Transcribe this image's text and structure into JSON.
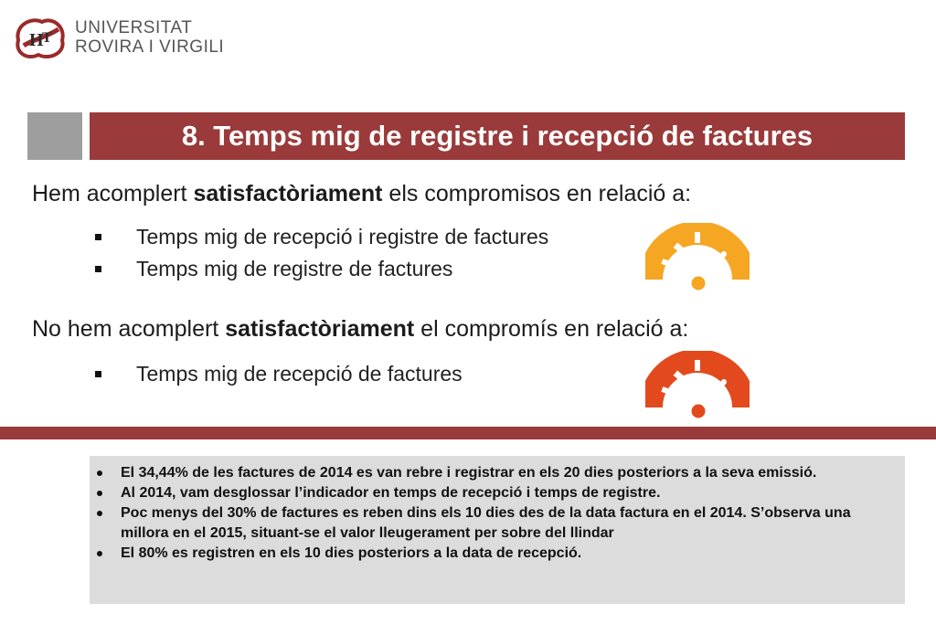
{
  "header": {
    "university_line1": "UNIVERSITAT",
    "university_line2": "ROVIRA I VIRGILI"
  },
  "title": "8. Temps mig de registre i recepció de factures",
  "section_met": {
    "heading_prefix": "Hem acomplert ",
    "heading_bold": "satisfactòriament",
    "heading_suffix": " els compromisos en relació a:",
    "items": [
      "Temps mig de recepció i registre de factures",
      "Temps mig de registre de factures"
    ],
    "gauge_color": "#f5a623",
    "gauge_icon": "speedometer-icon"
  },
  "section_not_met": {
    "heading_prefix": "No hem acomplert ",
    "heading_bold": "satisfactòriament",
    "heading_suffix": " el compromís en relació a:",
    "items": [
      "Temps mig de recepció de factures"
    ],
    "gauge_color": "#e24a1e",
    "gauge_icon": "speedometer-icon"
  },
  "notes": [
    "El 34,44% de les factures de 2014 es van rebre i registrar en els 20 dies posteriors a la seva emissió.",
    "Al 2014, vam desglossar l’indicador en temps de recepció i temps de registre.",
    "Poc menys del 30% de factures es reben dins els 10 dies des de la data factura en el 2014. S’observa una millora en el 2015, situant-se el valor lleugerament per sobre del llindar",
    "El 80% es registren en els 10 dies posteriors a la data de recepció."
  ],
  "colors": {
    "accent": "#9a3a3a",
    "grey_block": "#9e9e9e",
    "notes_bg": "#dcdcdc"
  }
}
